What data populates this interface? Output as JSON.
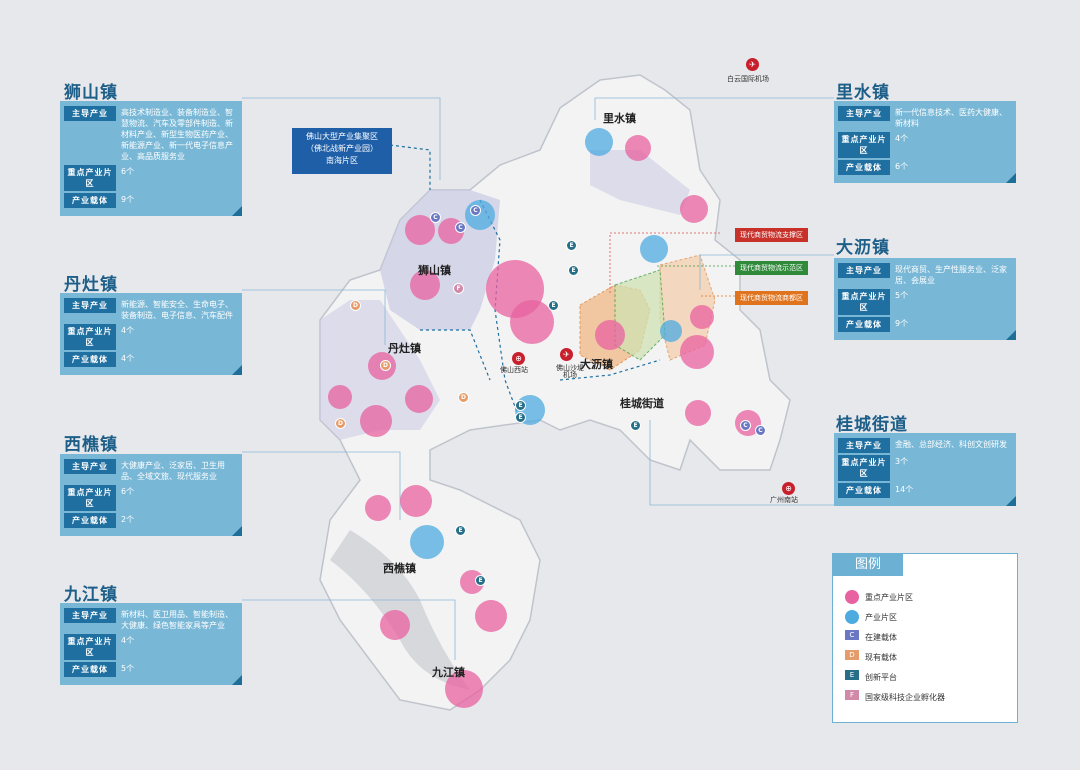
{
  "towns": {
    "shishan": {
      "title": "狮山镇",
      "industry_label": "主导产业",
      "industry": "高技术制造业、装备制造业、智慧物流、汽车及零部件制造、新材料产业、新型生物医药产业、新能源产业、新一代电子信息产业、高品质服务业",
      "zone_label": "重点产业片区",
      "zone_count": "6个",
      "carrier_label": "产业载体",
      "carrier_count": "9个"
    },
    "dandzao": {
      "title": "丹灶镇",
      "industry_label": "主导产业",
      "industry": "新能源、智能安全、生命电子、装备制造、电子信息、汽车配件",
      "zone_label": "重点产业片区",
      "zone_count": "4个",
      "carrier_label": "产业载体",
      "carrier_count": "4个"
    },
    "xiqiao": {
      "title": "西樵镇",
      "industry_label": "主导产业",
      "industry": "大健康产业、泛家居、卫生用品、全域文旅、现代服务业",
      "zone_label": "重点产业片区",
      "zone_count": "6个",
      "carrier_label": "产业载体",
      "carrier_count": "2个"
    },
    "jiujiang": {
      "title": "九江镇",
      "industry_label": "主导产业",
      "industry": "新材料、医卫用品、智能制造、大健康、绿色智能家具等产业",
      "zone_label": "重点产业片区",
      "zone_count": "4个",
      "carrier_label": "产业载体",
      "carrier_count": "5个"
    },
    "lishui": {
      "title": "里水镇",
      "industry_label": "主导产业",
      "industry": "新一代信息技术、医药大健康、新材料",
      "zone_label": "重点产业片区",
      "zone_count": "4个",
      "carrier_label": "产业载体",
      "carrier_count": "6个"
    },
    "dali": {
      "title": "大沥镇",
      "industry_label": "主导产业",
      "industry": "现代商贸、生产性服务业、泛家居、会展业",
      "zone_label": "重点产业片区",
      "zone_count": "5个",
      "carrier_label": "产业载体",
      "carrier_count": "9个"
    },
    "guicheng": {
      "title": "桂城街道",
      "industry_label": "主导产业",
      "industry": "金融、总部经济、科创文创研发",
      "zone_label": "重点产业片区",
      "zone_count": "3个",
      "carrier_label": "产业载体",
      "carrier_count": "14个"
    }
  },
  "foshan_zone": {
    "line1": "佛山大型产业集聚区",
    "line2": "（佛北战新产业园）",
    "line3": "南海片区"
  },
  "logistics": {
    "support": "现代商贸物流支撑区",
    "demo": "现代商贸物流示范区",
    "core": "现代商贸物流商都区"
  },
  "map_labels": {
    "lishui": "里水镇",
    "shishan": "狮山镇",
    "dandzao": "丹灶镇",
    "dali": "大沥镇",
    "guicheng": "桂城街道",
    "xiqiao": "西樵镇",
    "jiujiang": "九江镇"
  },
  "hubs": {
    "baiyun": "白云国际机场",
    "guangzhou_south": "广州南站",
    "foshan_west": "佛山西站",
    "shadi": "佛山沙堤机场"
  },
  "legend": {
    "title": "图例",
    "items": [
      {
        "label": "重点产业片区",
        "kind": "pink"
      },
      {
        "label": "产业片区",
        "kind": "blue"
      },
      {
        "label": "在建载体",
        "kind": "C"
      },
      {
        "label": "现有载体",
        "kind": "D"
      },
      {
        "label": "创新平台",
        "kind": "E"
      },
      {
        "label": "国家级科技企业孵化器",
        "kind": "F"
      }
    ]
  },
  "colors": {
    "card": "#78b7d6",
    "label_bg": "#1f6fa0",
    "pink": "#e861a0",
    "blue": "#4dabe0",
    "title": "#1d5f89"
  }
}
